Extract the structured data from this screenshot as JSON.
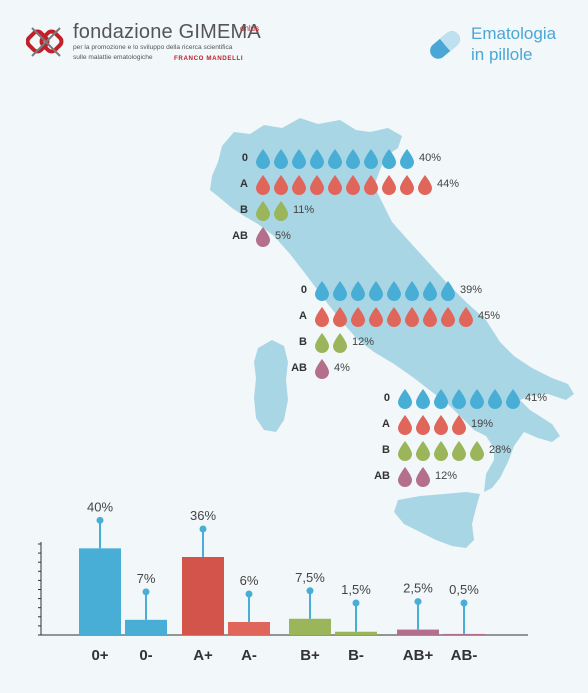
{
  "header": {
    "brand_name": "fondazione GIMEMA",
    "brand_onlus": "onlus",
    "subtitle_line1": "per la promozione e lo sviluppo della ricerca scientifica",
    "subtitle_line2": "sulle malattie ematologiche",
    "founder": "FRANCO MANDELLI",
    "tagline_line1": "Ematologia",
    "tagline_line2": "in pillole"
  },
  "colors": {
    "type_0": "#49aed6",
    "type_A": "#e0665c",
    "type_B": "#9bb55a",
    "type_AB": "#b36f8c",
    "map_fill": "#a9d6e4",
    "background": "#f2f7fa",
    "bar_0_pos": "#49aed6",
    "bar_0_neg": "#49aed6",
    "bar_A_pos": "#d2544b",
    "bar_A_neg": "#e0665c",
    "bar_B_pos": "#9bb55a",
    "bar_B_neg": "#9bb55a",
    "bar_AB_pos": "#b36f8c",
    "bar_AB_neg": "#b36f8c",
    "stem": "#49aed6"
  },
  "regions": [
    {
      "rows": [
        {
          "type": "0",
          "drops": 9,
          "label": "40%"
        },
        {
          "type": "A",
          "drops": 10,
          "label": "44%"
        },
        {
          "type": "B",
          "drops": 2,
          "label": "11%"
        },
        {
          "type": "AB",
          "drops": 1,
          "label": "5%"
        }
      ]
    },
    {
      "rows": [
        {
          "type": "0",
          "drops": 8,
          "label": "39%"
        },
        {
          "type": "A",
          "drops": 9,
          "label": "45%"
        },
        {
          "type": "B",
          "drops": 2,
          "label": "12%"
        },
        {
          "type": "AB",
          "drops": 1,
          "label": "4%"
        }
      ]
    },
    {
      "rows": [
        {
          "type": "0",
          "drops": 7,
          "label": "41%"
        },
        {
          "type": "A",
          "drops": 4,
          "label": "19%"
        },
        {
          "type": "B",
          "drops": 5,
          "label": "28%"
        },
        {
          "type": "AB",
          "drops": 2,
          "label": "12%"
        }
      ]
    }
  ],
  "chart_data": {
    "type": "bar",
    "categories": [
      "0+",
      "0-",
      "A+",
      "A-",
      "B+",
      "B-",
      "AB+",
      "AB-"
    ],
    "values": [
      40,
      7,
      36,
      6,
      7.5,
      1.5,
      2.5,
      0.5
    ],
    "data_labels": [
      "40%",
      "7%",
      "36%",
      "6%",
      "7,5%",
      "1,5%",
      "2,5%",
      "0,5%"
    ],
    "ylim": [
      0,
      42
    ],
    "title": "",
    "xlabel": "",
    "ylabel": ""
  }
}
